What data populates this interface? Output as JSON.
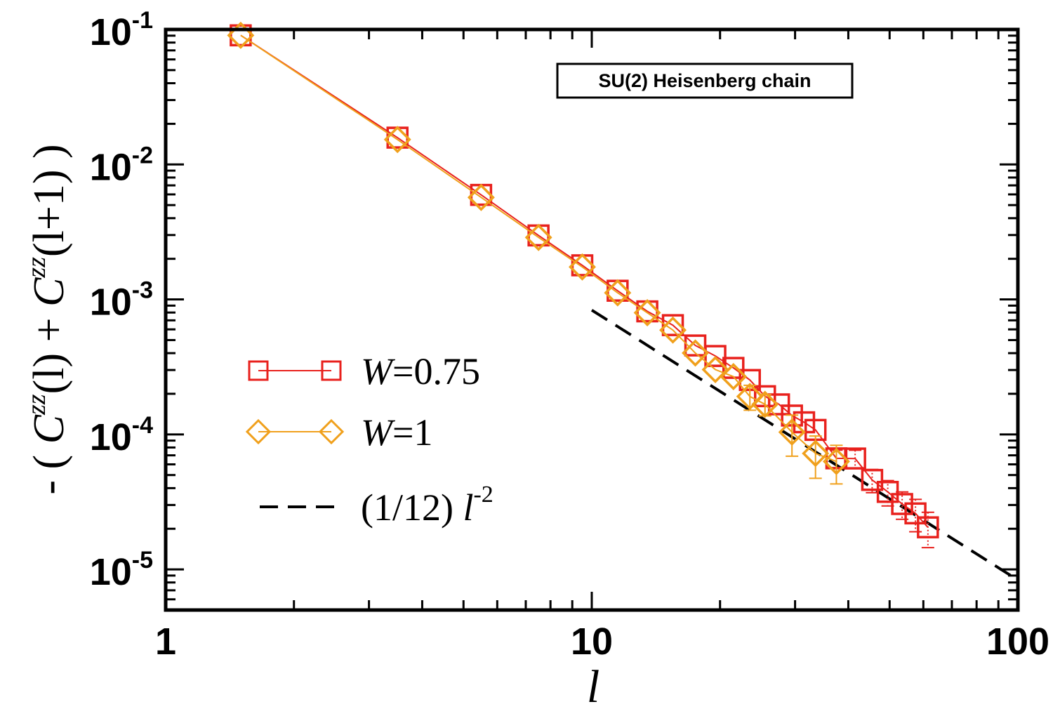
{
  "chart_data": {
    "type": "scatter",
    "title": "",
    "xscale": "log",
    "yscale": "log",
    "xlim": [
      1,
      100
    ],
    "ylim": [
      5e-06,
      0.1
    ],
    "x_ticks": [
      "1",
      "10",
      "100"
    ],
    "y_ticks": [
      {
        "base": "10",
        "exp": "-1"
      },
      {
        "base": "10",
        "exp": "-2"
      },
      {
        "base": "10",
        "exp": "-3"
      },
      {
        "base": "10",
        "exp": "-4"
      },
      {
        "base": "10",
        "exp": "-5"
      }
    ],
    "xlabel": "l",
    "ylabel": {
      "open": "- ( ",
      "c1": "C",
      "sup1": "zz",
      "arg1": "(l)",
      "plus": " + ",
      "c2": "C",
      "sup2": "zz",
      "arg2": "(l+1)",
      "close": " )"
    },
    "annotation": "SU(2) Heisenberg chain",
    "grid": false,
    "legend_position": "left-center",
    "legend": [
      {
        "var": "W",
        "value": "=0.75"
      },
      {
        "var": "W",
        "value": "=1"
      },
      {
        "prefix": "(1/12) ",
        "var": "l",
        "exp": "-2"
      }
    ],
    "series": [
      {
        "name": "W=0.75",
        "marker": "square",
        "color": "#e8211d",
        "points": [
          {
            "x": 1.5,
            "y": 0.0905
          },
          {
            "x": 3.5,
            "y": 0.0158
          },
          {
            "x": 5.5,
            "y": 0.00595
          },
          {
            "x": 7.5,
            "y": 0.00298
          },
          {
            "x": 9.5,
            "y": 0.00179
          },
          {
            "x": 11.5,
            "y": 0.00116
          },
          {
            "x": 13.5,
            "y": 0.000816
          },
          {
            "x": 15.5,
            "y": 0.000645
          },
          {
            "x": 17.5,
            "y": 0.000456
          },
          {
            "x": 19.5,
            "y": 0.000381
          },
          {
            "x": 21.5,
            "y": 0.000311
          },
          {
            "x": 23.5,
            "y": 0.000253
          },
          {
            "x": 25.5,
            "y": 0.000192
          },
          {
            "x": 27.5,
            "y": 0.000167
          },
          {
            "x": 29.5,
            "y": 0.000138
          },
          {
            "x": 31.5,
            "y": 0.000123
          },
          {
            "x": 33.5,
            "y": 0.000108
          },
          {
            "x": 37.5,
            "y": 6.65e-05,
            "err": 1e-05
          },
          {
            "x": 41.5,
            "y": 6.63e-05,
            "err": 1e-05
          },
          {
            "x": 45.5,
            "y": 4.6e-05,
            "err": 9e-06
          },
          {
            "x": 49.5,
            "y": 3.75e-05,
            "err": 8e-06
          },
          {
            "x": 53.5,
            "y": 3.05e-05,
            "err": 7e-06
          },
          {
            "x": 57.5,
            "y": 2.6e-05,
            "err": 7e-06
          },
          {
            "x": 61.5,
            "y": 2.05e-05,
            "err": 6e-06
          }
        ]
      },
      {
        "name": "W=1",
        "marker": "diamond",
        "color": "#f0a01c",
        "points": [
          {
            "x": 1.5,
            "y": 0.0905
          },
          {
            "x": 3.5,
            "y": 0.0153
          },
          {
            "x": 5.5,
            "y": 0.0057
          },
          {
            "x": 7.5,
            "y": 0.00288
          },
          {
            "x": 9.5,
            "y": 0.00174
          },
          {
            "x": 11.5,
            "y": 0.00112
          },
          {
            "x": 13.5,
            "y": 0.000797
          },
          {
            "x": 15.5,
            "y": 0.000593
          },
          {
            "x": 17.5,
            "y": 0.000401
          },
          {
            "x": 19.5,
            "y": 0.000302
          },
          {
            "x": 21.5,
            "y": 0.000268
          },
          {
            "x": 23.5,
            "y": 0.000191,
            "err": 4e-05
          },
          {
            "x": 25.5,
            "y": 0.000167,
            "err": 3e-05
          },
          {
            "x": 29.5,
            "y": 0.000104,
            "err": 3.5e-05
          },
          {
            "x": 33.5,
            "y": 7.23e-05,
            "err": 2.5e-05
          },
          {
            "x": 37.5,
            "y": 6.3e-05,
            "err": 2e-05
          }
        ]
      }
    ],
    "reference_line": {
      "name": "(1/12) l^-2",
      "coefficient": 0.0833333,
      "power": -2,
      "x_range": [
        10,
        100
      ],
      "style": "dashed",
      "color": "#000000"
    }
  }
}
